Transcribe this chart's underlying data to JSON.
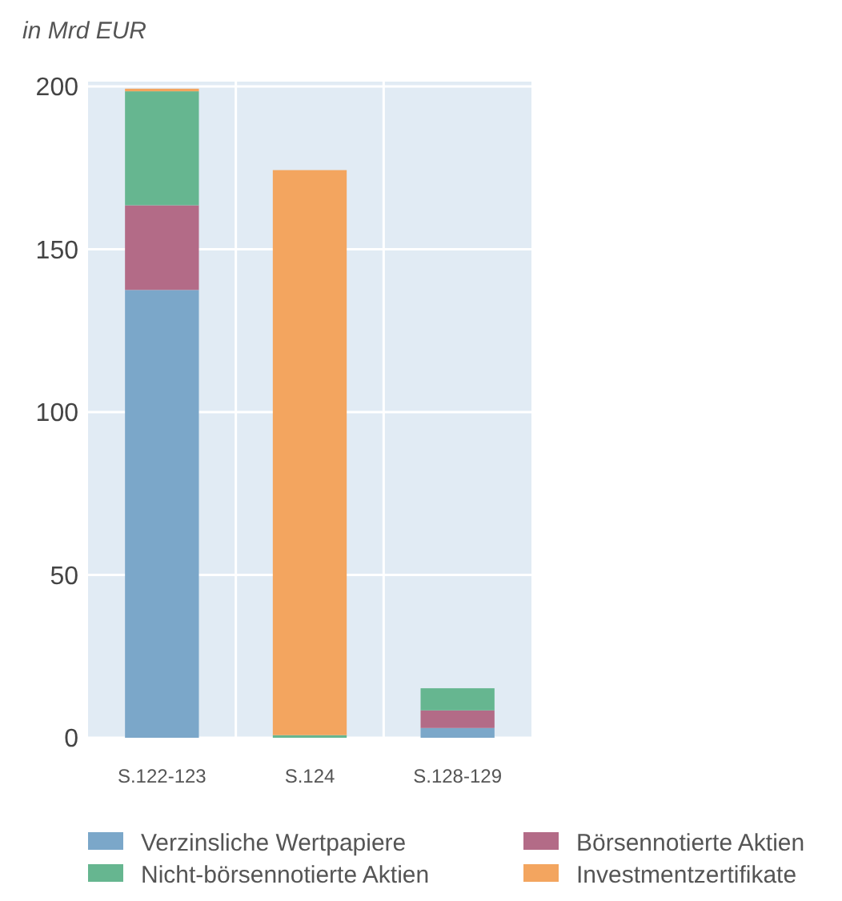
{
  "chart_data": {
    "type": "bar",
    "ylabel": "in Mrd EUR",
    "categories": [
      "S.122-123",
      "S.124",
      "S.128-129"
    ],
    "stacked": true,
    "series": [
      {
        "name": "Verzinsliche Wertpapiere",
        "color": "#7ba7c9",
        "values": [
          137.5,
          0,
          3
        ]
      },
      {
        "name": "Börsennotierte Aktien",
        "color": "#b36b87",
        "values": [
          26,
          0,
          5.4
        ]
      },
      {
        "name": "Nicht-börsennotierte Aktien",
        "color": "#66b690",
        "values": [
          35,
          0.8,
          6.8
        ]
      },
      {
        "name": "Investmentzertifikate",
        "color": "#f3a55f",
        "values": [
          0.8,
          173.5,
          0
        ]
      }
    ],
    "ylim": [
      0,
      200
    ],
    "yticks": [
      0,
      50,
      100,
      150,
      200
    ],
    "grid": true,
    "legend": "bottom"
  }
}
